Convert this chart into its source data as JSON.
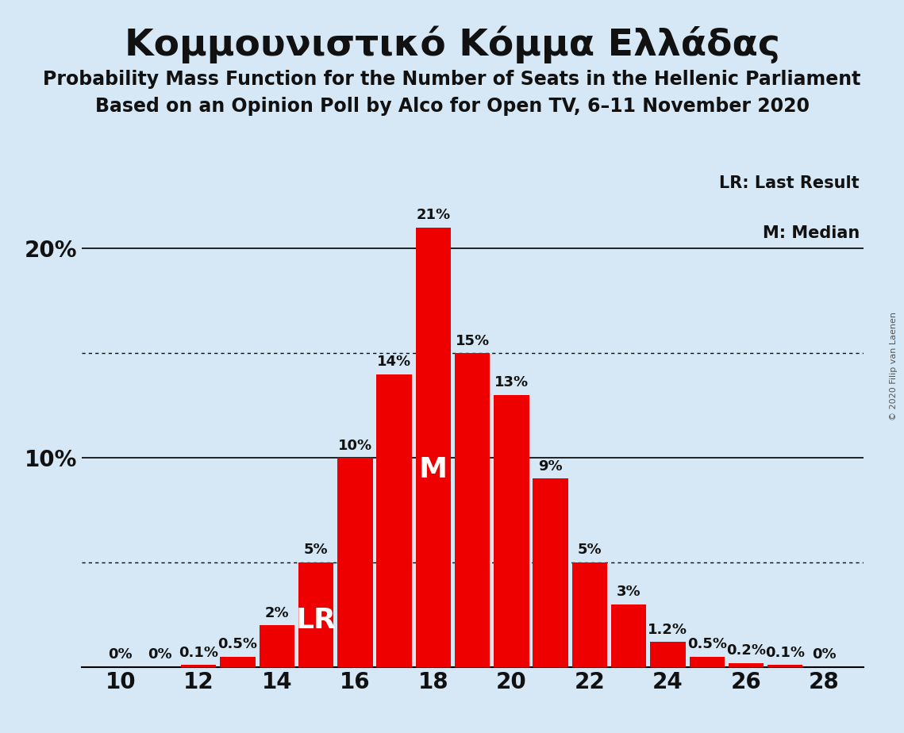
{
  "title": "Κομμουνιστικό Κόμμα Ελλάδας",
  "subtitle1": "Probability Mass Function for the Number of Seats in the Hellenic Parliament",
  "subtitle2": "Based on an Opinion Poll by Alco for Open TV, 6–11 November 2020",
  "copyright": "© 2020 Filip van Laenen",
  "seats": [
    10,
    11,
    12,
    13,
    14,
    15,
    16,
    17,
    18,
    19,
    20,
    21,
    22,
    23,
    24,
    25,
    26,
    27,
    28
  ],
  "probabilities": [
    0.0,
    0.0,
    0.1,
    0.5,
    2.0,
    5.0,
    10.0,
    14.0,
    21.0,
    15.0,
    13.0,
    9.0,
    5.0,
    3.0,
    1.2,
    0.5,
    0.2,
    0.1,
    0.0
  ],
  "labels": [
    "0%",
    "0%",
    "0.1%",
    "0.5%",
    "2%",
    "5%",
    "10%",
    "14%",
    "21%",
    "15%",
    "13%",
    "9%",
    "5%",
    "3%",
    "1.2%",
    "0.5%",
    "0.2%",
    "0.1%",
    "0%"
  ],
  "show_label": [
    true,
    true,
    true,
    true,
    true,
    true,
    true,
    true,
    true,
    true,
    true,
    true,
    true,
    true,
    true,
    true,
    true,
    true,
    true
  ],
  "bar_color": "#ee0000",
  "background_color": "#d6e8f5",
  "title_fontsize": 34,
  "subtitle_fontsize": 17,
  "label_fontsize": 13,
  "axis_tick_fontsize": 20,
  "median_seat": 18,
  "last_result_seat": 15,
  "legend_lr": "LR: Last Result",
  "legend_m": "M: Median",
  "xticks": [
    10,
    12,
    14,
    16,
    18,
    20,
    22,
    24,
    26,
    28
  ],
  "xtick_labels": [
    "10",
    "12",
    "14",
    "16",
    "18",
    "20",
    "22",
    "24",
    "26",
    "28"
  ],
  "solid_hlines": [
    10.0,
    20.0
  ],
  "dotted_hlines": [
    5.0,
    15.0
  ],
  "xlim": [
    9.0,
    29.0
  ],
  "ylim": [
    0,
    24.0
  ],
  "bar_width": 0.9
}
